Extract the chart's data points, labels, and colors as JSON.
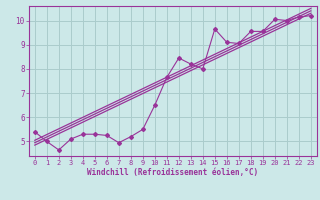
{
  "xlabel": "Windchill (Refroidissement éolien,°C)",
  "background_color": "#cce8e8",
  "grid_color": "#aacccc",
  "line_color": "#993399",
  "xlim": [
    -0.5,
    23.5
  ],
  "ylim": [
    4.4,
    10.6
  ],
  "xticks": [
    0,
    1,
    2,
    3,
    4,
    5,
    6,
    7,
    8,
    9,
    10,
    11,
    12,
    13,
    14,
    15,
    16,
    17,
    18,
    19,
    20,
    21,
    22,
    23
  ],
  "yticks": [
    5,
    6,
    7,
    8,
    9,
    10
  ],
  "scatter_x": [
    0,
    1,
    2,
    3,
    4,
    5,
    6,
    7,
    8,
    9,
    10,
    11,
    12,
    13,
    14,
    15,
    16,
    17,
    18,
    19,
    20,
    21,
    22,
    23
  ],
  "scatter_y": [
    5.4,
    5.0,
    4.65,
    5.1,
    5.3,
    5.3,
    5.25,
    4.95,
    5.2,
    5.5,
    6.5,
    7.65,
    8.45,
    8.2,
    8.0,
    9.65,
    9.1,
    9.05,
    9.55,
    9.55,
    10.05,
    10.0,
    10.15,
    10.2
  ],
  "line1_x": [
    0,
    23
  ],
  "line1_y": [
    4.85,
    10.3
  ],
  "line2_x": [
    0,
    23
  ],
  "line2_y": [
    5.05,
    10.5
  ],
  "line3_x": [
    0,
    23
  ],
  "line3_y": [
    4.95,
    10.4
  ],
  "tick_fontsize": 5.0,
  "xlabel_fontsize": 5.5
}
